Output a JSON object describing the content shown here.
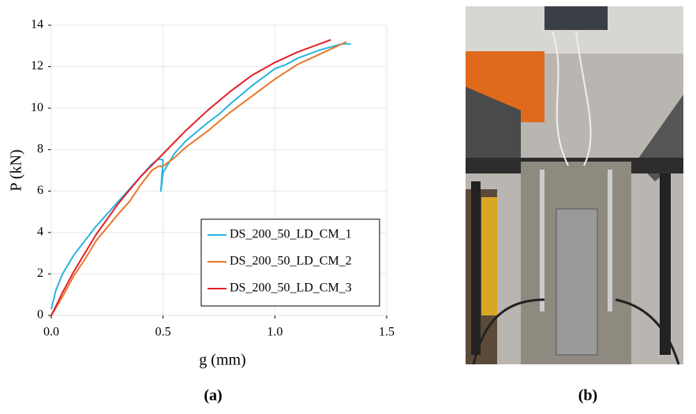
{
  "chart_data": {
    "type": "line",
    "x_label": "g (mm)",
    "y_label": "P (kN)",
    "xlim": [
      0,
      1.5
    ],
    "ylim": [
      0,
      14
    ],
    "xticks": [
      {
        "value": 0,
        "label": "0.0"
      },
      0.5,
      {
        "value": 1,
        "label": "1.0"
      },
      1.5
    ],
    "yticks": [
      0,
      2,
      4,
      6,
      8,
      10,
      12,
      14
    ],
    "grid": true,
    "legend": "lower right",
    "series": [
      {
        "name": "DS_200_50_LD_CM_1",
        "color": "#29b3e0",
        "x": [
          0,
          0.02,
          0.05,
          0.1,
          0.2,
          0.3,
          0.4,
          0.45,
          0.48,
          0.5,
          0.49,
          0.5,
          0.55,
          0.6,
          0.7,
          0.75,
          0.8,
          0.9,
          1.0,
          1.05,
          1.1,
          1.2,
          1.3,
          1.34
        ],
        "values": [
          0.3,
          1.2,
          2,
          2.9,
          4.3,
          5.5,
          6.7,
          7.3,
          7.55,
          7.5,
          6.0,
          6.9,
          7.8,
          8.4,
          9.3,
          9.7,
          10.2,
          11.1,
          11.9,
          12.1,
          12.4,
          12.8,
          13.1,
          13.1
        ]
      },
      {
        "name": "DS_200_50_LD_CM_2",
        "color": "#e8772c",
        "x": [
          0,
          0.05,
          0.1,
          0.15,
          0.2,
          0.3,
          0.35,
          0.4,
          0.45,
          0.48,
          0.5,
          0.55,
          0.6,
          0.7,
          0.8,
          0.9,
          1.0,
          1.1,
          1.2,
          1.3,
          1.32
        ],
        "values": [
          0,
          0.9,
          1.9,
          2.7,
          3.6,
          4.9,
          5.5,
          6.3,
          7.0,
          7.2,
          7.2,
          7.6,
          8.1,
          8.9,
          9.8,
          10.6,
          11.4,
          12.1,
          12.6,
          13.1,
          13.2
        ]
      },
      {
        "name": "DS_200_50_LD_CM_3",
        "color": "#e3202a",
        "x": [
          0,
          0.05,
          0.1,
          0.2,
          0.3,
          0.4,
          0.5,
          0.6,
          0.7,
          0.8,
          0.9,
          1.0,
          1.1,
          1.2,
          1.25
        ],
        "values": [
          0,
          1.1,
          2.1,
          3.9,
          5.4,
          6.7,
          7.8,
          8.9,
          9.9,
          10.8,
          11.6,
          12.2,
          12.7,
          13.1,
          13.3
        ]
      }
    ]
  },
  "captions": [
    "(a)",
    "(b)"
  ]
}
